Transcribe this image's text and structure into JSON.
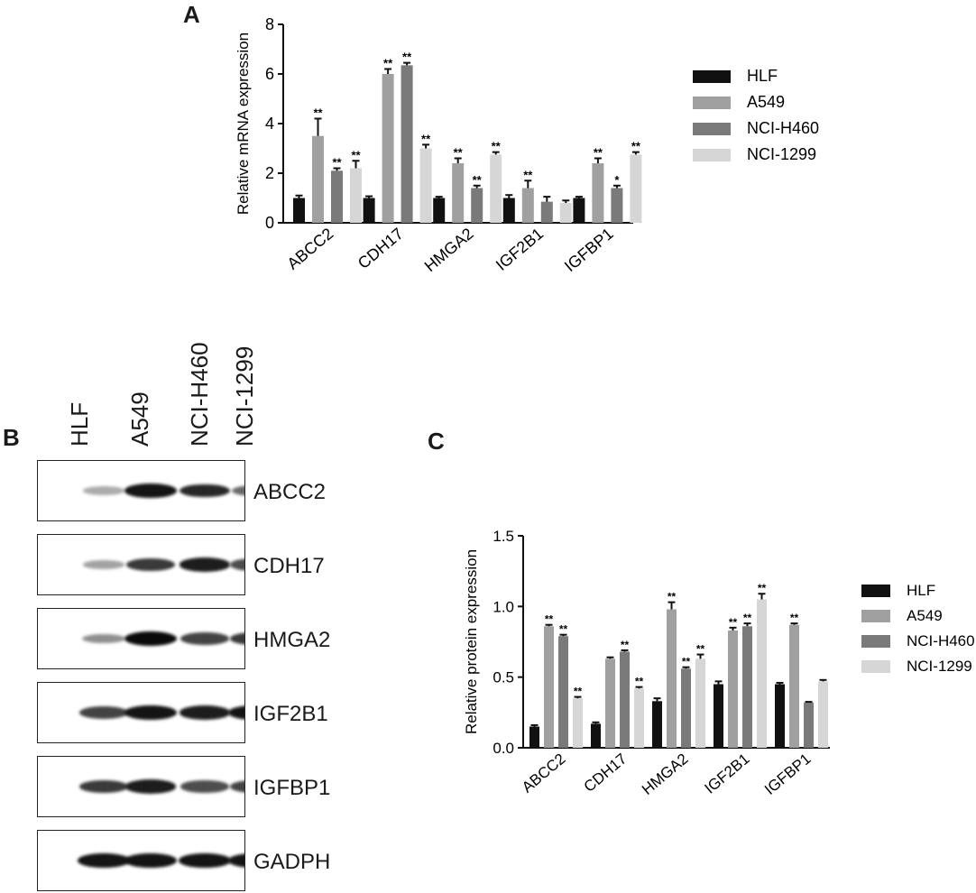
{
  "panels": {
    "a": "A",
    "b": "B",
    "c": "C"
  },
  "colors": {
    "HLF": "#111111",
    "A549": "#a0a0a0",
    "NCI-H460": "#7a7a7a",
    "NCI-1299": "#d6d6d6"
  },
  "chart_data": [
    {
      "type": "bar",
      "ylabel": "Relative mRNA expression",
      "ylim": [
        0,
        8
      ],
      "yticks": [
        "0",
        "2",
        "4",
        "6",
        "8"
      ],
      "categories": [
        "ABCC2",
        "CDH17",
        "HMGA2",
        "IGF2B1",
        "IGFBP1"
      ],
      "series": [
        {
          "name": "HLF",
          "values": [
            1.0,
            1.0,
            1.0,
            1.0,
            1.0
          ],
          "errors": [
            0.1,
            0.07,
            0.05,
            0.12,
            0.05
          ],
          "sig": [
            "",
            "",
            "",
            "",
            ""
          ]
        },
        {
          "name": "A549",
          "values": [
            3.5,
            6.0,
            2.4,
            1.4,
            2.4
          ],
          "errors": [
            0.7,
            0.2,
            0.2,
            0.3,
            0.2
          ],
          "sig": [
            "**",
            "**",
            "**",
            "**",
            "**"
          ]
        },
        {
          "name": "NCI-H460",
          "values": [
            2.1,
            6.35,
            1.4,
            0.85,
            1.4
          ],
          "errors": [
            0.1,
            0.1,
            0.1,
            0.2,
            0.1
          ],
          "sig": [
            "**",
            "**",
            "**",
            "",
            "*"
          ]
        },
        {
          "name": "NCI-1299",
          "values": [
            2.2,
            3.0,
            2.75,
            0.8,
            2.75
          ],
          "errors": [
            0.3,
            0.15,
            0.1,
            0.1,
            0.1
          ],
          "sig": [
            "**",
            "**",
            "**",
            "",
            "**"
          ]
        }
      ],
      "legend": "right"
    },
    {
      "type": "bar",
      "ylabel": "Relative protein expression",
      "ylim": [
        0,
        1.5
      ],
      "yticks": [
        "0.0",
        "0.5",
        "1.0",
        "1.5"
      ],
      "categories": [
        "ABCC2",
        "CDH17",
        "HMGA2",
        "IGF2B1",
        "IGFBP1"
      ],
      "series": [
        {
          "name": "HLF",
          "values": [
            0.15,
            0.17,
            0.33,
            0.45,
            0.45
          ],
          "errors": [
            0.01,
            0.01,
            0.02,
            0.02,
            0.01
          ],
          "sig": [
            "",
            "",
            "",
            "",
            ""
          ]
        },
        {
          "name": "A549",
          "values": [
            0.86,
            0.63,
            0.98,
            0.83,
            0.87
          ],
          "errors": [
            0.01,
            0.01,
            0.05,
            0.02,
            0.01
          ],
          "sig": [
            "**",
            "",
            "**",
            "**",
            "**"
          ]
        },
        {
          "name": "NCI-H460",
          "values": [
            0.79,
            0.68,
            0.56,
            0.86,
            0.32
          ],
          "errors": [
            0.01,
            0.01,
            0.01,
            0.02,
            0.005
          ],
          "sig": [
            "**",
            "**",
            "**",
            "**",
            ""
          ]
        },
        {
          "name": "NCI-1299",
          "values": [
            0.35,
            0.42,
            0.63,
            1.05,
            0.47
          ],
          "errors": [
            0.01,
            0.01,
            0.03,
            0.04,
            0.01
          ],
          "sig": [
            "**",
            "**",
            "**",
            "**",
            ""
          ]
        }
      ],
      "legend": "right"
    }
  ],
  "blot": {
    "lanes": [
      "HLF",
      "A549",
      "NCI-H460",
      "NCI-1299"
    ],
    "rows": [
      {
        "label": "ABCC2",
        "intensity": [
          0.15,
          0.95,
          0.85,
          0.5
        ]
      },
      {
        "label": "CDH17",
        "intensity": [
          0.2,
          0.75,
          0.9,
          0.65
        ]
      },
      {
        "label": "HMGA2",
        "intensity": [
          0.3,
          1.0,
          0.7,
          0.75
        ]
      },
      {
        "label": "IGF2B1",
        "intensity": [
          0.7,
          0.95,
          0.9,
          0.95
        ]
      },
      {
        "label": "IGFBP1",
        "intensity": [
          0.75,
          0.9,
          0.65,
          0.7
        ]
      },
      {
        "label": "GADPH",
        "intensity": [
          0.95,
          0.95,
          0.95,
          0.95
        ]
      }
    ]
  }
}
